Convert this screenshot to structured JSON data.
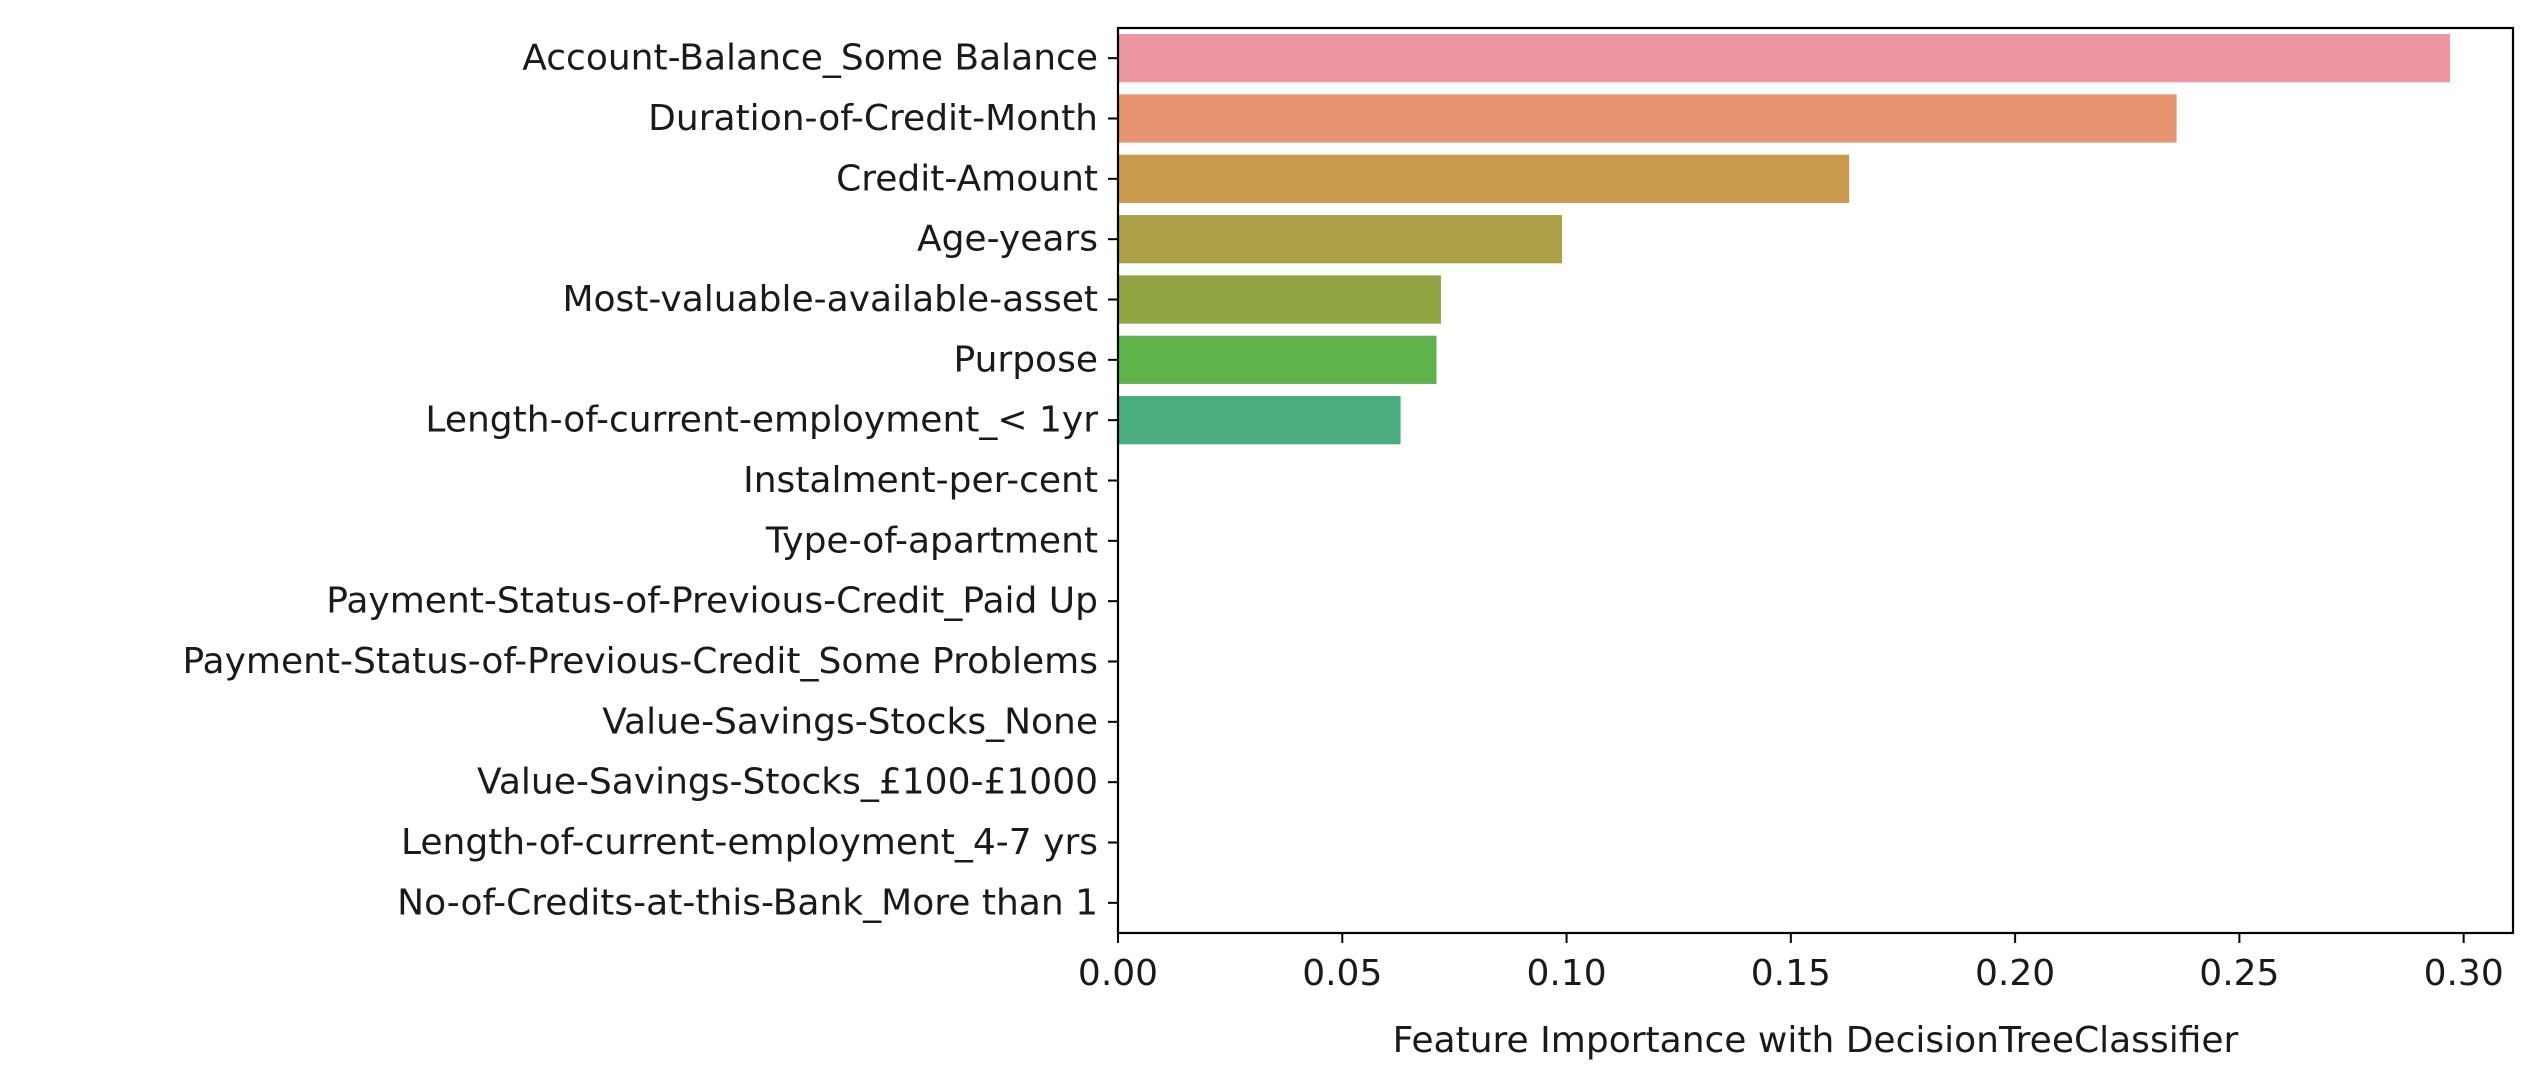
{
  "chart_data": {
    "type": "bar",
    "orientation": "horizontal",
    "title": "",
    "xlabel": "Feature Importance with DecisionTreeClassifier",
    "ylabel": "",
    "xlim": [
      0,
      0.311
    ],
    "xticks": [
      "0.00",
      "0.05",
      "0.10",
      "0.15",
      "0.20",
      "0.25",
      "0.30"
    ],
    "grid": false,
    "categories": [
      "Account-Balance_Some Balance",
      "Duration-of-Credit-Month",
      "Credit-Amount",
      "Age-years",
      "Most-valuable-available-asset",
      "Purpose",
      "Length-of-current-employment_< 1yr",
      "Instalment-per-cent",
      "Type-of-apartment",
      "Payment-Status-of-Previous-Credit_Paid Up",
      "Payment-Status-of-Previous-Credit_Some Problems",
      "Value-Savings-Stocks_None",
      "Value-Savings-Stocks_£100-£1000",
      "Length-of-current-employment_4-7 yrs",
      "No-of-Credits-at-this-Bank_More than 1"
    ],
    "values": [
      0.297,
      0.236,
      0.163,
      0.099,
      0.072,
      0.071,
      0.063,
      0,
      0,
      0,
      0,
      0,
      0,
      0,
      0
    ],
    "colors": [
      "#ec96a1",
      "#e59370",
      "#c99a4b",
      "#aca046",
      "#92a543",
      "#5fb34a",
      "#49ad80",
      "#4aae9b",
      "#4baab2",
      "#4da6c5",
      "#5b9fdd",
      "#9a8fe6",
      "#c683e0",
      "#e47ac9",
      "#ec86a8"
    ]
  }
}
